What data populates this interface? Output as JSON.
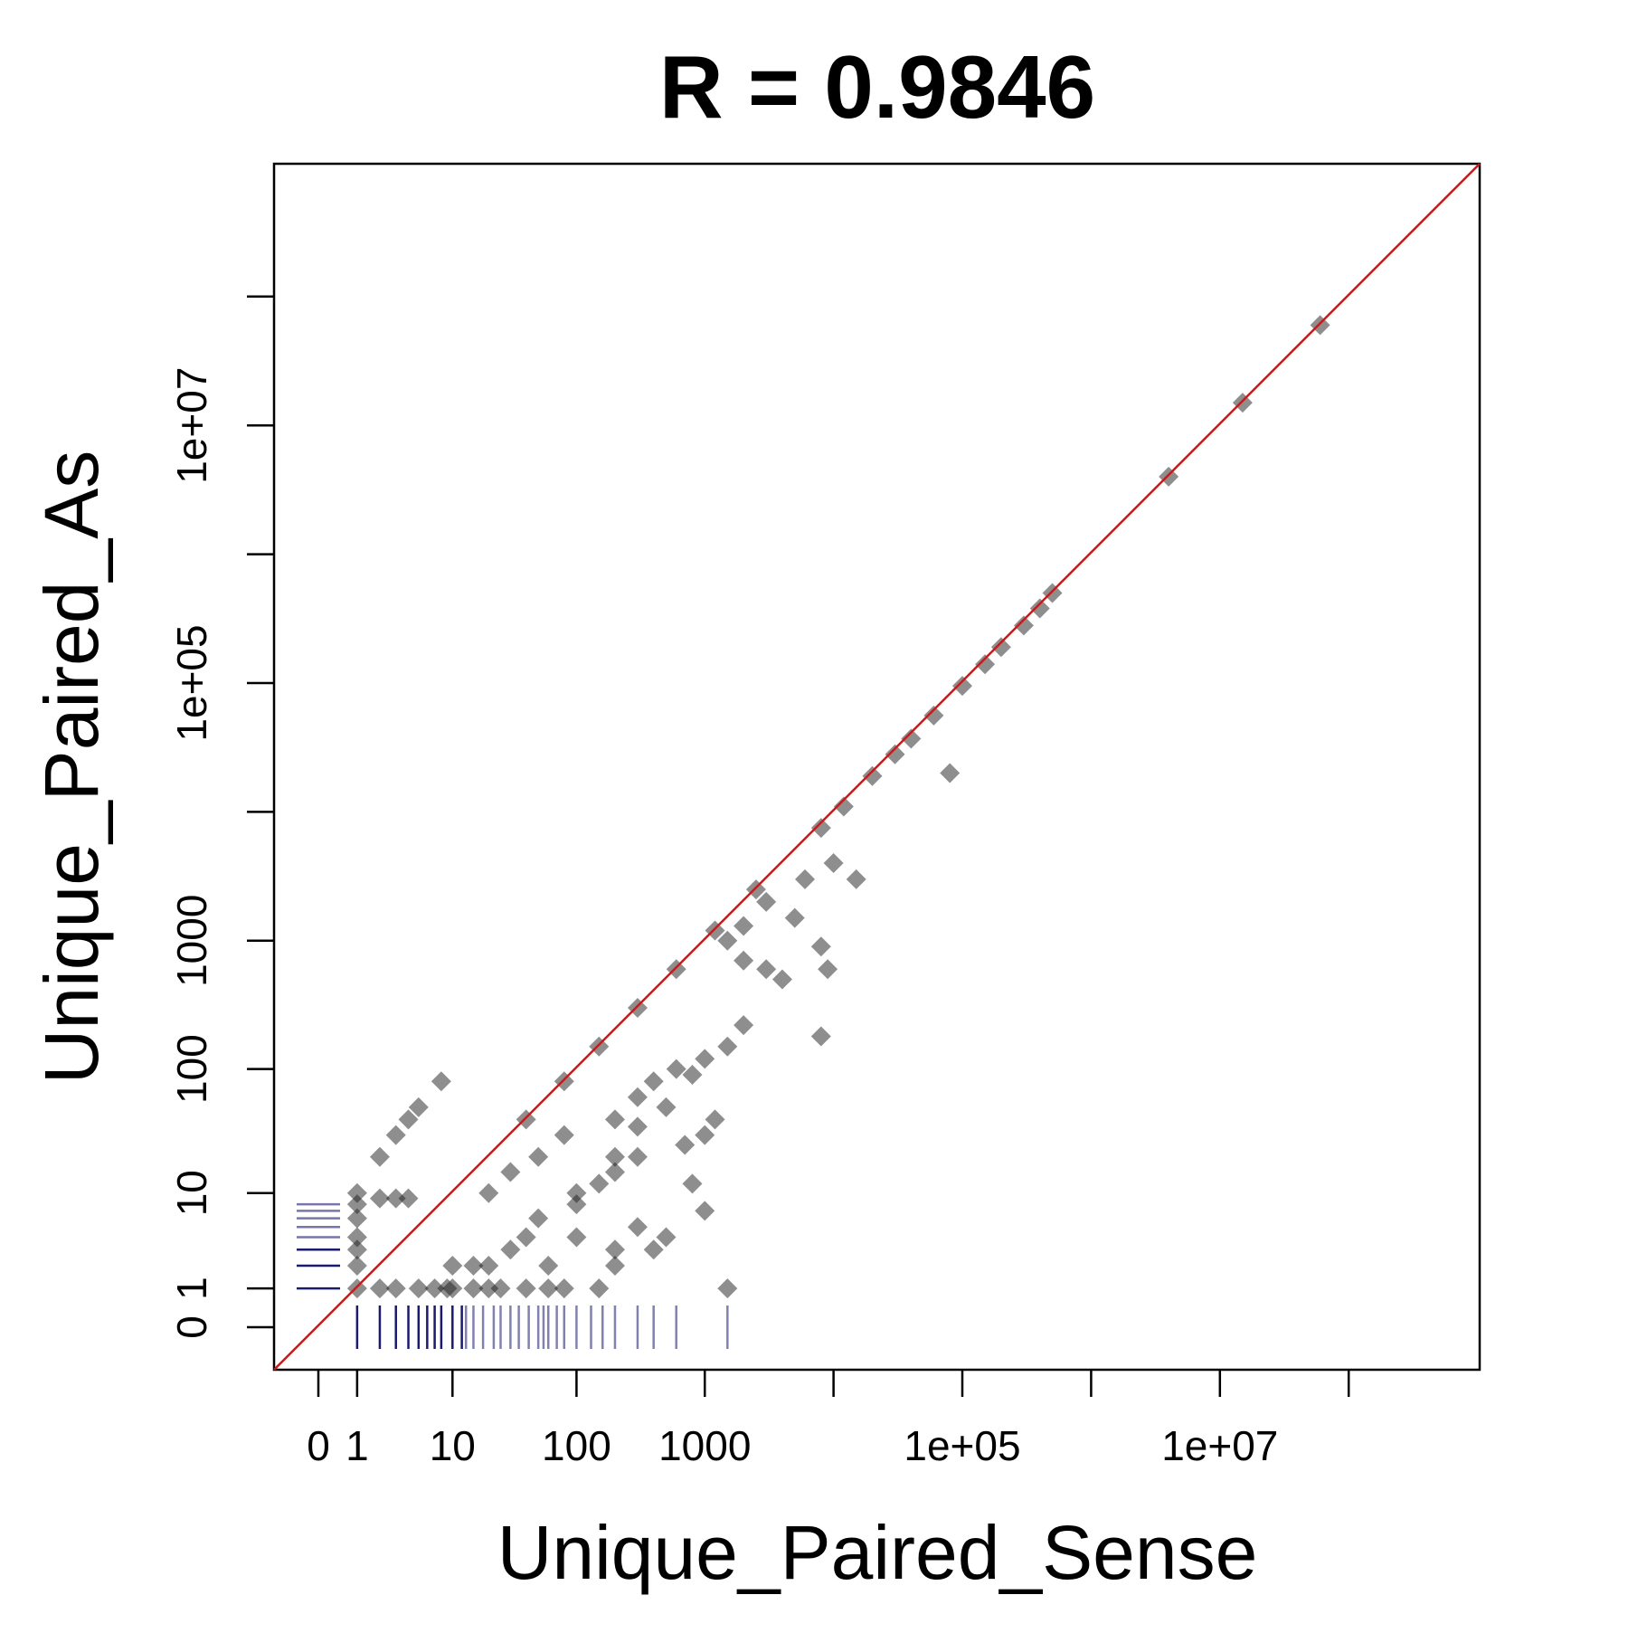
{
  "chart_data": {
    "type": "scatter",
    "title": "R = 0.9846",
    "xlabel": "Unique_Paired_Sense",
    "ylabel": "Unique_Paired_As",
    "scale": "log10 (count + 1)",
    "xlim": [
      0,
      100000000
    ],
    "ylim": [
      0,
      100000000
    ],
    "x_tick_labels": [
      "0",
      "1",
      "10",
      "100",
      "1000",
      "1e+05",
      "1e+07"
    ],
    "y_tick_labels": [
      "0",
      "1",
      "10",
      "100",
      "1000",
      "1e+05",
      "1e+07"
    ],
    "reference_line": {
      "type": "identity y = x",
      "color": "#dd1111"
    },
    "point_color": "#1e1e1e",
    "rug_color": "#1a1a6e",
    "series": [
      {
        "points": [
          [
            60000000,
            60000000
          ],
          [
            15000000,
            15000000
          ],
          [
            4000000,
            4000000
          ],
          [
            500000,
            500000
          ],
          [
            400000,
            380000
          ],
          [
            300000,
            280000
          ],
          [
            200000,
            190000
          ],
          [
            150000,
            140000
          ],
          [
            100000,
            95000
          ],
          [
            80000,
            20000
          ],
          [
            60000,
            56000
          ],
          [
            40000,
            37000
          ],
          [
            30000,
            28000
          ],
          [
            20000,
            19000
          ],
          [
            12000,
            11000
          ],
          [
            8000,
            7500
          ],
          [
            6000,
            3000
          ],
          [
            5000,
            1500
          ],
          [
            2000,
            1300
          ],
          [
            15000,
            3000
          ],
          [
            10000,
            4000
          ],
          [
            3000,
            2000
          ],
          [
            9000,
            600
          ],
          [
            8000,
            900
          ],
          [
            4000,
            500
          ],
          [
            3000,
            600
          ],
          [
            2000,
            700
          ],
          [
            1500,
            1000
          ],
          [
            8000,
            180
          ],
          [
            2000,
            220
          ],
          [
            1500,
            150
          ],
          [
            1000,
            120
          ],
          [
            800,
            90
          ],
          [
            600,
            100
          ],
          [
            400,
            80
          ],
          [
            300,
            60
          ],
          [
            200,
            40
          ],
          [
            500,
            50
          ],
          [
            1000,
            30
          ],
          [
            300,
            35
          ],
          [
            200,
            20
          ],
          [
            150,
            12
          ],
          [
            100,
            8
          ],
          [
            50,
            6
          ],
          [
            100,
            4
          ],
          [
            200,
            3
          ],
          [
            300,
            5
          ],
          [
            400,
            3
          ],
          [
            500,
            4
          ],
          [
            1000,
            7
          ],
          [
            1500,
            1
          ],
          [
            150,
            1
          ],
          [
            80,
            1
          ],
          [
            60,
            1
          ],
          [
            40,
            1
          ],
          [
            25,
            1
          ],
          [
            20,
            1
          ],
          [
            15,
            1
          ],
          [
            10,
            1
          ],
          [
            20,
            2
          ],
          [
            15,
            2
          ],
          [
            10,
            2
          ],
          [
            30,
            3
          ],
          [
            40,
            4
          ],
          [
            60,
            2
          ],
          [
            200,
            2
          ],
          [
            100,
            10
          ],
          [
            200,
            15
          ],
          [
            300,
            20
          ],
          [
            700,
            25
          ],
          [
            1200,
            40
          ],
          [
            800,
            12
          ],
          [
            50,
            20
          ],
          [
            80,
            30
          ],
          [
            30,
            15
          ],
          [
            20,
            10
          ],
          [
            3,
            30
          ],
          [
            5,
            50
          ],
          [
            8,
            80
          ],
          [
            2,
            20
          ],
          [
            4,
            40
          ],
          [
            1,
            10
          ],
          [
            1,
            8
          ],
          [
            1,
            6
          ],
          [
            1,
            4
          ],
          [
            1,
            3
          ],
          [
            1,
            2
          ],
          [
            2,
            1
          ],
          [
            3,
            1
          ],
          [
            5,
            1
          ],
          [
            7,
            1
          ],
          [
            9,
            1
          ],
          [
            1,
            1
          ],
          [
            2,
            9
          ],
          [
            3,
            9
          ],
          [
            4,
            9
          ],
          [
            40,
            40
          ],
          [
            80,
            80
          ],
          [
            150,
            150
          ],
          [
            300,
            300
          ],
          [
            600,
            600
          ],
          [
            1200,
            1200
          ],
          [
            2500,
            2500
          ]
        ]
      }
    ],
    "rug_x": [
      1,
      2,
      3,
      4,
      5,
      6,
      7,
      8,
      10,
      12,
      13,
      15,
      18,
      22,
      25,
      30,
      35,
      42,
      50,
      55,
      60,
      70,
      80,
      100,
      130,
      160,
      200,
      300,
      400,
      600,
      1500
    ],
    "rug_y": [
      1,
      2,
      3,
      4,
      5,
      6,
      7,
      8
    ]
  }
}
